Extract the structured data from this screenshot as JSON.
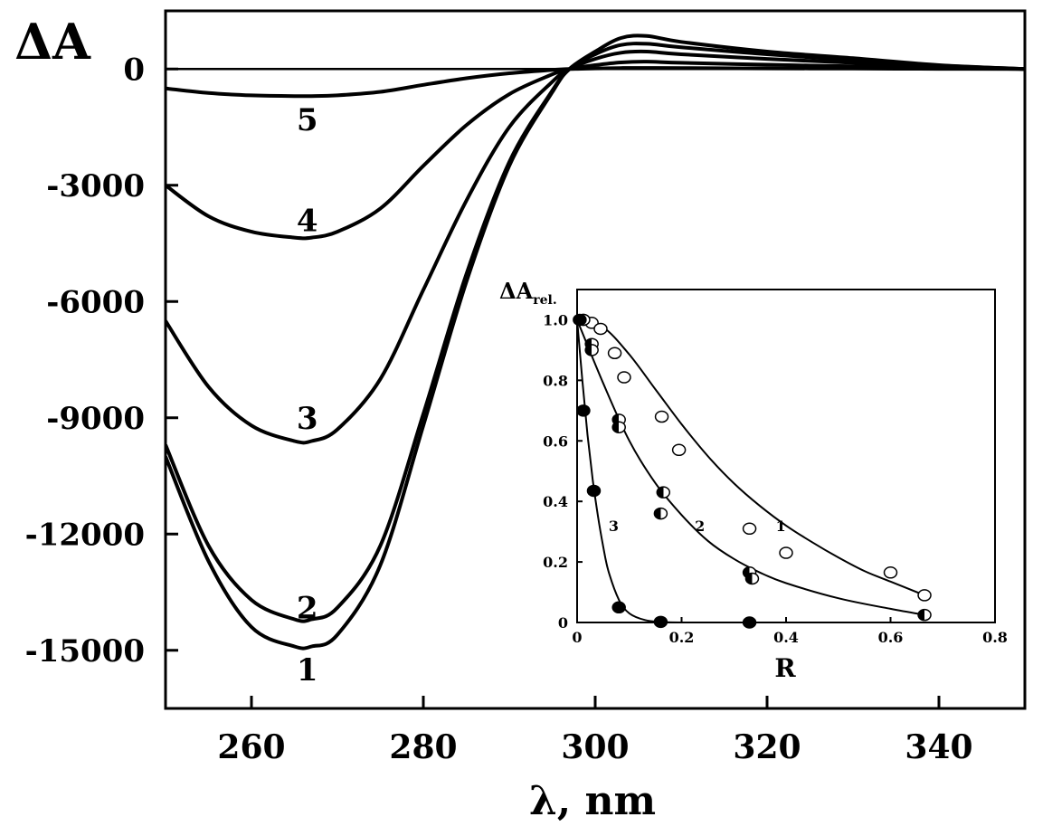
{
  "chart_data": [
    {
      "type": "line",
      "title": "",
      "xlabel": "λ, nm",
      "ylabel": "ΔA",
      "xlim": [
        250,
        350
      ],
      "ylim": [
        -16500,
        1500
      ],
      "xticks": [
        260,
        280,
        300,
        320,
        340
      ],
      "yticks": [
        0,
        -3000,
        -6000,
        -9000,
        -12000,
        -15000
      ],
      "xtick_labels": [
        "260",
        "280",
        "300",
        "320",
        "340"
      ],
      "ytick_labels": [
        "0",
        "-3000",
        "-6000",
        "-9000",
        "-12000",
        "-15000"
      ],
      "grid": false,
      "series": [
        {
          "name": "1",
          "label_at": [
            266.5,
            -15500
          ],
          "x": [
            250,
            255,
            260,
            265,
            267,
            270,
            275,
            280,
            285,
            290,
            295,
            297,
            300,
            303,
            306,
            310,
            320,
            330,
            340,
            350
          ],
          "y": [
            -10000,
            -12700,
            -14400,
            -14900,
            -14900,
            -14600,
            -12800,
            -9200,
            -5500,
            -2500,
            -600,
            0,
            450,
            800,
            850,
            700,
            450,
            280,
            100,
            0
          ]
        },
        {
          "name": "2",
          "label_at": [
            266.5,
            -13900
          ],
          "x": [
            250,
            255,
            260,
            265,
            267,
            270,
            275,
            280,
            285,
            290,
            295,
            297,
            300,
            303,
            306,
            310,
            320,
            330,
            340,
            350
          ],
          "y": [
            -9700,
            -12300,
            -13700,
            -14200,
            -14200,
            -13900,
            -12300,
            -8900,
            -5300,
            -2400,
            -560,
            0,
            380,
            620,
            650,
            560,
            380,
            230,
            90,
            0
          ]
        },
        {
          "name": "3",
          "label_at": [
            266.5,
            -9000
          ],
          "x": [
            250,
            255,
            260,
            265,
            267,
            270,
            275,
            280,
            285,
            290,
            295,
            297,
            300,
            303,
            306,
            310,
            320,
            330,
            340,
            350
          ],
          "y": [
            -6500,
            -8200,
            -9200,
            -9600,
            -9600,
            -9300,
            -8000,
            -5700,
            -3400,
            -1500,
            -330,
            0,
            260,
            420,
            450,
            380,
            260,
            160,
            60,
            0
          ]
        },
        {
          "name": "4",
          "label_at": [
            266.5,
            -3900
          ],
          "x": [
            250,
            255,
            260,
            265,
            267,
            270,
            275,
            280,
            285,
            290,
            295,
            297,
            300,
            303,
            306,
            310,
            320,
            330,
            340,
            350
          ],
          "y": [
            -3000,
            -3800,
            -4200,
            -4350,
            -4350,
            -4200,
            -3600,
            -2500,
            -1450,
            -650,
            -140,
            0,
            100,
            170,
            190,
            160,
            110,
            70,
            30,
            0
          ]
        },
        {
          "name": "5",
          "label_at": [
            266.5,
            -1300
          ],
          "x": [
            250,
            255,
            260,
            265,
            267,
            270,
            275,
            280,
            285,
            290,
            295,
            297,
            300,
            303,
            306,
            310,
            320,
            330,
            340,
            350
          ],
          "y": [
            -500,
            -620,
            -680,
            -700,
            -700,
            -680,
            -590,
            -410,
            -240,
            -110,
            -25,
            0,
            15,
            25,
            28,
            24,
            16,
            10,
            4,
            0
          ]
        }
      ]
    },
    {
      "type": "scatter",
      "title": "",
      "xlabel": "R",
      "ylabel": "ΔA",
      "ylabel_sub": "rel.",
      "xlim": [
        0,
        0.8
      ],
      "ylim": [
        0,
        1.1
      ],
      "xticks": [
        0,
        0.2,
        0.4,
        0.6,
        0.8
      ],
      "yticks": [
        0,
        0.2,
        0.4,
        0.6,
        0.8,
        1.0
      ],
      "xtick_labels": [
        "0",
        "0.2",
        "0.4",
        "0.6",
        "0.8"
      ],
      "ytick_labels": [
        "0",
        "0.2",
        "0.4",
        "0.6",
        "0.8",
        "1.0"
      ],
      "grid": false,
      "series": [
        {
          "name": "1",
          "marker": "open",
          "label_at": [
            0.39,
            0.32
          ],
          "points": [
            [
              0.012,
              1.0
            ],
            [
              0.028,
              0.99
            ],
            [
              0.045,
              0.97
            ],
            [
              0.072,
              0.89
            ],
            [
              0.09,
              0.81
            ],
            [
              0.162,
              0.68
            ],
            [
              0.195,
              0.57
            ],
            [
              0.33,
              0.31
            ],
            [
              0.4,
              0.23
            ],
            [
              0.6,
              0.165
            ],
            [
              0.665,
              0.09
            ]
          ],
          "fit": {
            "x": [
              0,
              0.05,
              0.1,
              0.15,
              0.2,
              0.25,
              0.3,
              0.35,
              0.4,
              0.45,
              0.5,
              0.55,
              0.6,
              0.665
            ],
            "y": [
              1.0,
              0.975,
              0.885,
              0.77,
              0.655,
              0.55,
              0.46,
              0.385,
              0.32,
              0.265,
              0.215,
              0.17,
              0.135,
              0.09
            ]
          }
        },
        {
          "name": "2",
          "marker": "half",
          "label_at": [
            0.235,
            0.32
          ],
          "points": [
            [
              0.012,
              1.0
            ],
            [
              0.028,
              0.92
            ],
            [
              0.028,
              0.9
            ],
            [
              0.08,
              0.67
            ],
            [
              0.08,
              0.645
            ],
            [
              0.165,
              0.43
            ],
            [
              0.16,
              0.36
            ],
            [
              0.33,
              0.165
            ],
            [
              0.335,
              0.145
            ],
            [
              0.665,
              0.025
            ]
          ],
          "fit": {
            "x": [
              0,
              0.05,
              0.1,
              0.15,
              0.2,
              0.25,
              0.3,
              0.35,
              0.4,
              0.5,
              0.6,
              0.665
            ],
            "y": [
              1.0,
              0.79,
              0.6,
              0.46,
              0.355,
              0.27,
              0.21,
              0.165,
              0.13,
              0.08,
              0.045,
              0.025
            ]
          }
        },
        {
          "name": "3",
          "marker": "filled",
          "label_at": [
            0.07,
            0.32
          ],
          "points": [
            [
              0.005,
              1.0
            ],
            [
              0.012,
              0.7
            ],
            [
              0.032,
              0.435
            ],
            [
              0.08,
              0.05
            ],
            [
              0.16,
              0.002
            ],
            [
              0.33,
              0.0
            ]
          ],
          "fit": {
            "x": [
              0,
              0.01,
              0.02,
              0.03,
              0.04,
              0.05,
              0.06,
              0.08,
              0.1,
              0.13,
              0.16,
              0.2,
              0.33
            ],
            "y": [
              1.0,
              0.8,
              0.62,
              0.47,
              0.35,
              0.25,
              0.17,
              0.075,
              0.03,
              0.008,
              0.002,
              0.0,
              0.0
            ]
          }
        }
      ]
    }
  ]
}
